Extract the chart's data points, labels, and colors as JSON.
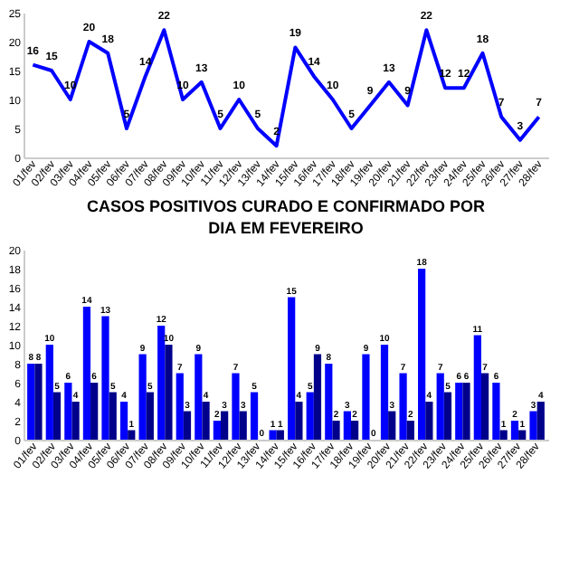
{
  "chart_data": [
    {
      "type": "line",
      "categories": [
        "01/fev",
        "02/fev",
        "03/fev",
        "04/fev",
        "05/fev",
        "06/fev",
        "07/fev",
        "08/fev",
        "09/fev",
        "10/fev",
        "11/fev",
        "12/fev",
        "13/fev",
        "14/fev",
        "15/fev",
        "16/fev",
        "17/fev",
        "18/fev",
        "19/fev",
        "20/fev",
        "21/fev",
        "22/fev",
        "23/fev",
        "24/fev",
        "25/fev",
        "26/fev",
        "27/fev",
        "28/fev"
      ],
      "series": [
        {
          "color": "#0000ff",
          "values": [
            16,
            15,
            10,
            20,
            18,
            5,
            14,
            22,
            10,
            13,
            5,
            10,
            5,
            2,
            19,
            14,
            10,
            5,
            9,
            13,
            9,
            22,
            12,
            12,
            18,
            7,
            3,
            7
          ]
        }
      ],
      "ylim": [
        0,
        25
      ],
      "yticks": [
        0,
        5,
        10,
        15,
        20,
        25
      ],
      "grid": false,
      "marker": "none",
      "line_style": "solid",
      "data_labels": true
    },
    {
      "type": "bar",
      "title": "CASOS POSITIVOS CURADO E CONFIRMADO POR DIA EM FEVEREIRO",
      "categories": [
        "01/fev",
        "02/fev",
        "03/fev",
        "04/fev",
        "05/fev",
        "06/fev",
        "07/fev",
        "08/fev",
        "09/fev",
        "10/fev",
        "11/fev",
        "12/fev",
        "13/fev",
        "14/fev",
        "15/fev",
        "16/fev",
        "17/fev",
        "18/fev",
        "19/fev",
        "20/fev",
        "21/fev",
        "22/fev",
        "23/fev",
        "24/fev",
        "25/fev",
        "26/fev",
        "27/fev",
        "28/fev"
      ],
      "series": [
        {
          "color": "#0000ff",
          "values": [
            8,
            10,
            6,
            14,
            13,
            4,
            9,
            12,
            7,
            9,
            2,
            7,
            5,
            1,
            15,
            5,
            8,
            3,
            9,
            10,
            7,
            18,
            7,
            6,
            11,
            6,
            2,
            3
          ]
        },
        {
          "color": "#00008b",
          "values": [
            8,
            5,
            4,
            6,
            5,
            1,
            5,
            10,
            3,
            4,
            3,
            3,
            0,
            1,
            4,
            9,
            2,
            2,
            0,
            3,
            2,
            4,
            5,
            6,
            7,
            1,
            1,
            4
          ]
        }
      ],
      "ylim": [
        0,
        20
      ],
      "yticks": [
        0,
        2,
        4,
        6,
        8,
        10,
        12,
        14,
        16,
        18,
        20
      ],
      "grid": false,
      "data_labels": true
    }
  ]
}
